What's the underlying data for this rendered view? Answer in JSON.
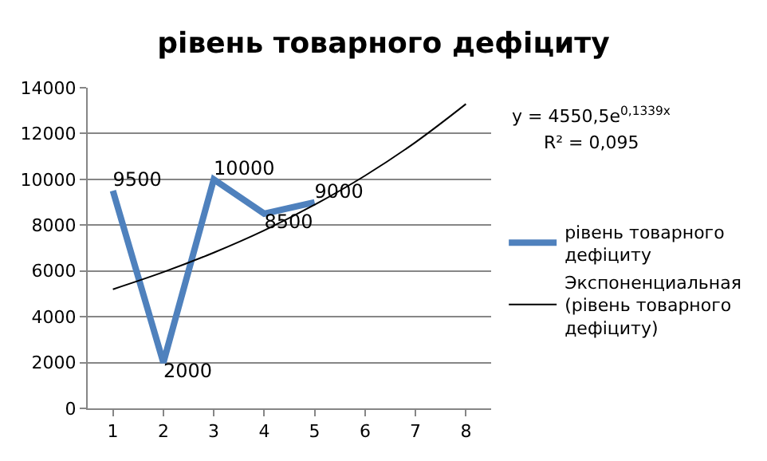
{
  "chart_data": {
    "type": "line",
    "title": "рівень товарного дефіциту",
    "categories": [
      "1",
      "2",
      "3",
      "4",
      "5",
      "6",
      "7",
      "8"
    ],
    "series": [
      {
        "name": "рівень товарного дефіциту",
        "color": "#4f81bd",
        "values": [
          9500,
          2000,
          10000,
          8500,
          9000,
          null,
          null,
          null
        ],
        "value_labels": [
          "9500",
          "2000",
          "10000",
          "8500",
          "9000",
          null,
          null,
          null
        ]
      },
      {
        "name": "Экспоненциальная (рівень товарного дефіциту)",
        "color": "#000000",
        "values": [
          5200,
          5950,
          6800,
          7770,
          8890,
          10160,
          11620,
          13290
        ]
      }
    ],
    "annotations": [
      "y = 4550,5e$^{0,1339x}$",
      "R² = 0,095"
    ],
    "ylim": [
      0,
      14000
    ],
    "yticks": [
      0,
      2000,
      4000,
      6000,
      8000,
      10000,
      12000,
      14000
    ],
    "grid": "y",
    "legend": "right",
    "marker": "none"
  }
}
